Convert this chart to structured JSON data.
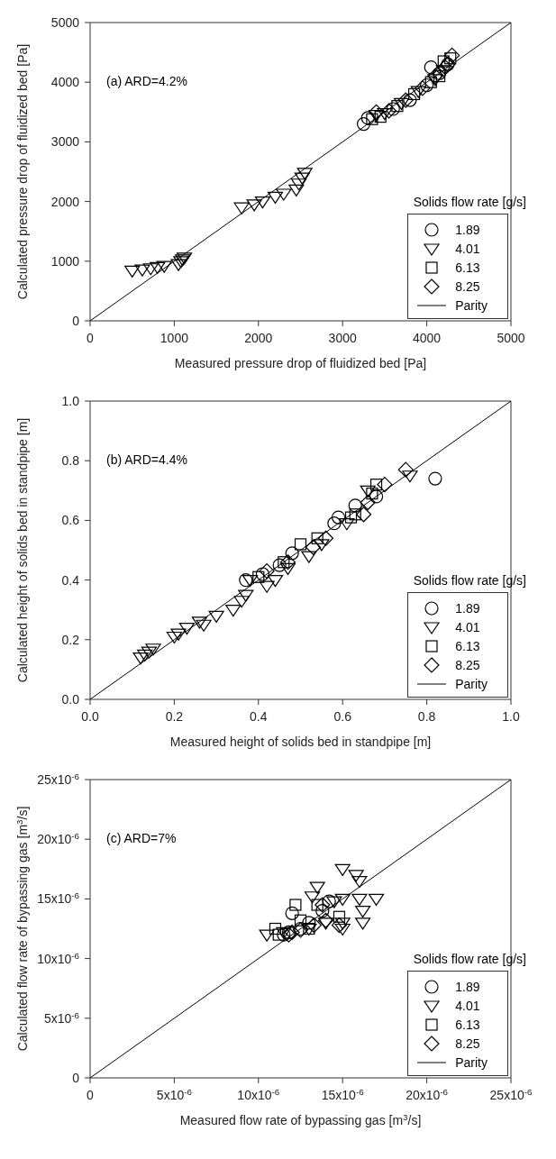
{
  "chart_data": [
    {
      "type": "scatter",
      "xlabel": "Measured pressure drop of fluidized bed [Pa]",
      "ylabel": "Calculated pressure drop of fluidized bed [Pa]",
      "legend_title": "Solids flow rate [g/s]",
      "legend": "bottom right",
      "annotations": [
        "(a) ARD=4.2%"
      ],
      "xlim": [
        0,
        5000
      ],
      "ylim": [
        0,
        5000
      ],
      "xticks": [
        0,
        1000,
        2000,
        3000,
        4000,
        5000
      ],
      "yticks": [
        0,
        1000,
        2000,
        3000,
        4000,
        5000
      ],
      "series": [
        {
          "name": "1.89",
          "color": "#000000",
          "marker": "circle",
          "x": [
            3250,
            3300,
            3600,
            3800,
            4000,
            4050,
            4150,
            4250
          ],
          "values": [
            3300,
            3400,
            3550,
            3700,
            3950,
            4250,
            4150,
            4300
          ]
        },
        {
          "name": "4.01",
          "color": "#000000",
          "marker": "triangle",
          "x": [
            500,
            620,
            720,
            800,
            880,
            1050,
            1080,
            1100,
            1120,
            1800,
            1950,
            2050,
            2200,
            2300,
            2450,
            2480,
            2520,
            2550,
            3400,
            3500,
            3700,
            3900,
            4100,
            4200
          ],
          "values": [
            840,
            860,
            880,
            900,
            920,
            950,
            1000,
            1030,
            1060,
            1900,
            1950,
            2000,
            2080,
            2130,
            2200,
            2300,
            2400,
            2480,
            3450,
            3480,
            3650,
            3850,
            4050,
            4200
          ]
        },
        {
          "name": "6.13",
          "color": "#000000",
          "marker": "square",
          "x": [
            3350,
            3450,
            3650,
            3850,
            4050,
            4150,
            4200,
            4280
          ],
          "values": [
            3380,
            3420,
            3600,
            3800,
            4000,
            4100,
            4350,
            4400
          ]
        },
        {
          "name": "8.25",
          "color": "#000000",
          "marker": "diamond",
          "x": [
            3400,
            3550,
            3750,
            3950,
            4100,
            4220,
            4300,
            4250
          ],
          "values": [
            3500,
            3520,
            3700,
            3900,
            4100,
            4250,
            4450,
            4300
          ]
        },
        {
          "name": "Parity",
          "type": "line",
          "color": "#000000",
          "marker": "none",
          "line_style": "solid",
          "x": [
            0,
            5000
          ],
          "values": [
            0,
            5000
          ]
        }
      ]
    },
    {
      "type": "scatter",
      "xlabel": "Measured height of solids bed in standpipe [m]",
      "ylabel": "Calculated height of solids bed in standpipe [m]",
      "legend_title": "Solids flow rate [g/s]",
      "legend": "bottom right",
      "annotations": [
        "(b) ARD=4.4%"
      ],
      "xlim": [
        0,
        1
      ],
      "ylim": [
        0,
        1
      ],
      "xticks": [
        {
          "value": 0,
          "label": "0.0"
        },
        0.2,
        0.4,
        0.6,
        0.8,
        {
          "value": 1,
          "label": "1.0"
        }
      ],
      "yticks": [
        {
          "value": 0,
          "label": "0.0"
        },
        0.2,
        0.4,
        0.6,
        0.8,
        {
          "value": 1,
          "label": "1.0"
        }
      ],
      "series": [
        {
          "name": "1.89",
          "color": "#000000",
          "marker": "circle",
          "x": [
            0.37,
            0.41,
            0.45,
            0.48,
            0.51,
            0.58,
            0.59,
            0.63,
            0.68,
            0.82
          ],
          "values": [
            0.4,
            0.42,
            0.45,
            0.49,
            null,
            0.59,
            0.61,
            0.65,
            0.68,
            0.74
          ]
        },
        {
          "name": "4.01",
          "color": "#000000",
          "marker": "triangle",
          "x": [
            0.12,
            0.13,
            0.14,
            0.15,
            0.2,
            0.21,
            0.23,
            0.26,
            0.27,
            0.3,
            0.34,
            0.36,
            0.37,
            0.38,
            0.42,
            0.44,
            0.47,
            0.52,
            0.55,
            0.61,
            0.66,
            0.76
          ],
          "values": [
            0.14,
            0.15,
            0.16,
            0.17,
            0.21,
            0.22,
            0.24,
            0.26,
            0.25,
            0.28,
            0.3,
            0.33,
            0.35,
            0.4,
            0.38,
            0.4,
            0.44,
            0.48,
            0.52,
            0.59,
            0.7,
            0.75
          ]
        },
        {
          "name": "6.13",
          "color": "#000000",
          "marker": "square",
          "x": [
            0.4,
            0.46,
            0.5,
            0.54,
            0.62,
            0.63,
            0.67,
            0.68
          ],
          "values": [
            0.41,
            0.46,
            0.52,
            0.54,
            0.61,
            0.62,
            0.69,
            0.72
          ]
        },
        {
          "name": "8.25",
          "color": "#000000",
          "marker": "diamond",
          "x": [
            0.42,
            0.47,
            0.53,
            0.56,
            0.65,
            0.66,
            0.7,
            0.75
          ],
          "values": [
            0.43,
            0.46,
            0.51,
            0.54,
            0.62,
            0.66,
            0.72,
            0.77
          ]
        },
        {
          "name": "Parity",
          "type": "line",
          "color": "#000000",
          "marker": "none",
          "line_style": "solid",
          "x": [
            0,
            1
          ],
          "values": [
            0,
            1
          ]
        }
      ]
    },
    {
      "type": "scatter",
      "xlabel": "Measured flow rate of bypassing gas [m$^{3}$/s]",
      "ylabel": "Calculated flow rate of bypassing gas [m$^{3}$/s]",
      "legend_title": "Solids flow rate [g/s]",
      "legend": "bottom right",
      "annotations": [
        "(c) ARD=7%"
      ],
      "xlim": [
        0,
        2.5e-05
      ],
      "ylim": [
        0,
        2.5e-05
      ],
      "xticks": [
        0,
        {
          "value": 5e-06,
          "label": "5x10$^{-6}$"
        },
        {
          "value": 1e-05,
          "label": "10x10$^{-6}$"
        },
        {
          "value": 1.5e-05,
          "label": "15x10$^{-6}$"
        },
        {
          "value": 2e-05,
          "label": "20x10$^{-6}$"
        },
        {
          "value": 2.5e-05,
          "label": "25x10$^{-6}$"
        }
      ],
      "yticks": [
        0,
        {
          "value": 5e-06,
          "label": "5x10$^{-6}$"
        },
        {
          "value": 1e-05,
          "label": "10x10$^{-6}$"
        },
        {
          "value": 1.5e-05,
          "label": "15x10$^{-6}$"
        },
        {
          "value": 2e-05,
          "label": "20x10$^{-6}$"
        },
        {
          "value": 2.5e-05,
          "label": "25x10$^{-6}$"
        }
      ],
      "series": [
        {
          "name": "1.89",
          "color": "#000000",
          "marker": "circle",
          "x": [
            1.15e-05,
            1.18e-05,
            1.2e-05,
            1.25e-05,
            1.3e-05,
            1.38e-05,
            1.42e-05
          ],
          "values": [
            1.2e-05,
            1.22e-05,
            1.38e-05,
            1.25e-05,
            1.3e-05,
            1.4e-05,
            1.48e-05
          ]
        },
        {
          "name": "4.01",
          "color": "#000000",
          "marker": "triangle",
          "x": [
            1.05e-05,
            1.15e-05,
            1.3e-05,
            1.32e-05,
            1.35e-05,
            1.4e-05,
            1.45e-05,
            1.5e-05,
            1.5e-05,
            1.5e-05,
            1.5e-05,
            1.58e-05,
            1.6e-05,
            1.6e-05,
            1.62e-05,
            1.62e-05,
            1.7e-05
          ],
          "values": [
            1.2e-05,
            1.22e-05,
            1.25e-05,
            1.52e-05,
            1.6e-05,
            1.3e-05,
            1.48e-05,
            1.75e-05,
            1.5e-05,
            1.3e-05,
            1.25e-05,
            1.7e-05,
            1.65e-05,
            1.5e-05,
            1.4e-05,
            1.3e-05,
            1.5e-05
          ]
        },
        {
          "name": "6.13",
          "color": "#000000",
          "marker": "square",
          "x": [
            1.1e-05,
            1.12e-05,
            1.22e-05,
            1.25e-05,
            1.3e-05,
            1.35e-05,
            1.48e-05
          ],
          "values": [
            1.25e-05,
            1.2e-05,
            1.45e-05,
            1.32e-05,
            1.25e-05,
            1.45e-05,
            1.35e-05
          ]
        },
        {
          "name": "8.25",
          "color": "#000000",
          "marker": "diamond",
          "x": [
            1.18e-05,
            1.2e-05,
            1.25e-05,
            1.33e-05,
            1.38e-05,
            1.4e-05,
            1.48e-05
          ],
          "values": [
            1.2e-05,
            1.22e-05,
            1.24e-05,
            1.28e-05,
            1.45e-05,
            1.32e-05,
            1.28e-05
          ]
        },
        {
          "name": "Parity",
          "type": "line",
          "color": "#000000",
          "marker": "none",
          "line_style": "solid",
          "x": [
            0,
            2.5e-05
          ],
          "values": [
            0,
            2.5e-05
          ]
        }
      ]
    }
  ]
}
